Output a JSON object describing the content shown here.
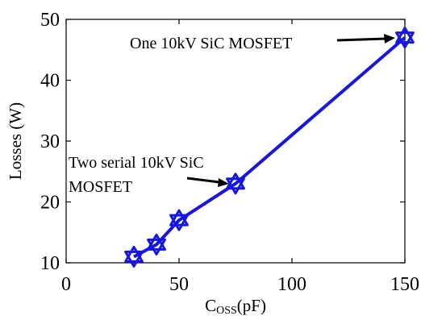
{
  "chart_data": {
    "type": "line",
    "x": [
      30,
      40,
      50,
      75,
      150
    ],
    "series": [
      {
        "values": [
          11,
          13,
          17,
          23,
          47
        ],
        "color": "#1515e6",
        "marker": "hexagram-star"
      }
    ],
    "xlim": [
      0,
      150
    ],
    "ylim": [
      10,
      50
    ],
    "xticks": [
      0,
      50,
      100,
      150
    ],
    "yticks": [
      10,
      20,
      30,
      40,
      50
    ],
    "xlabel": {
      "main": "C",
      "sub": "OSS",
      "unit": "(pF)"
    },
    "ylabel": "Losses (W)",
    "grid": false,
    "annotations": [
      {
        "text": "One 10kV SiC MOSFET",
        "points_to": [
          150,
          47
        ]
      },
      {
        "lines": [
          "Two serial 10kV SiC",
          "MOSFET"
        ],
        "points_to": [
          75,
          23
        ]
      }
    ]
  }
}
